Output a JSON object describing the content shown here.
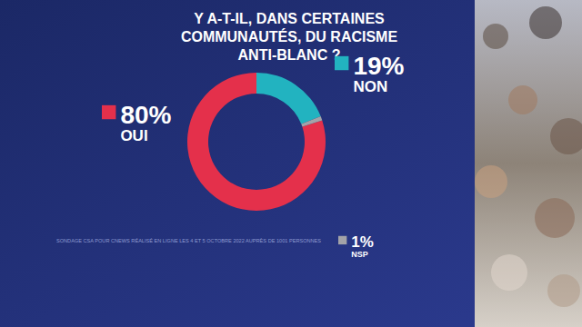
{
  "chart_data": {
    "type": "pie",
    "title": "Y A-T-IL, DANS CERTAINES COMMUNAUTÉS, DU RACISME ANTI-BLANC ?",
    "categories": [
      "OUI",
      "NON",
      "NSP"
    ],
    "values": [
      80,
      19,
      1
    ],
    "value_labels": [
      "80%",
      "19%",
      "1%"
    ],
    "colors": [
      "#e4304b",
      "#22b3c0",
      "#a3a3a8"
    ],
    "data_labels": true,
    "note": "SONDAGE CSA POUR CNEWS RÉALISÉ EN LIGNE LES 4 ET 5 OCTOBRE 2022 AUPRÈS DE 1001 PERSONNES"
  }
}
